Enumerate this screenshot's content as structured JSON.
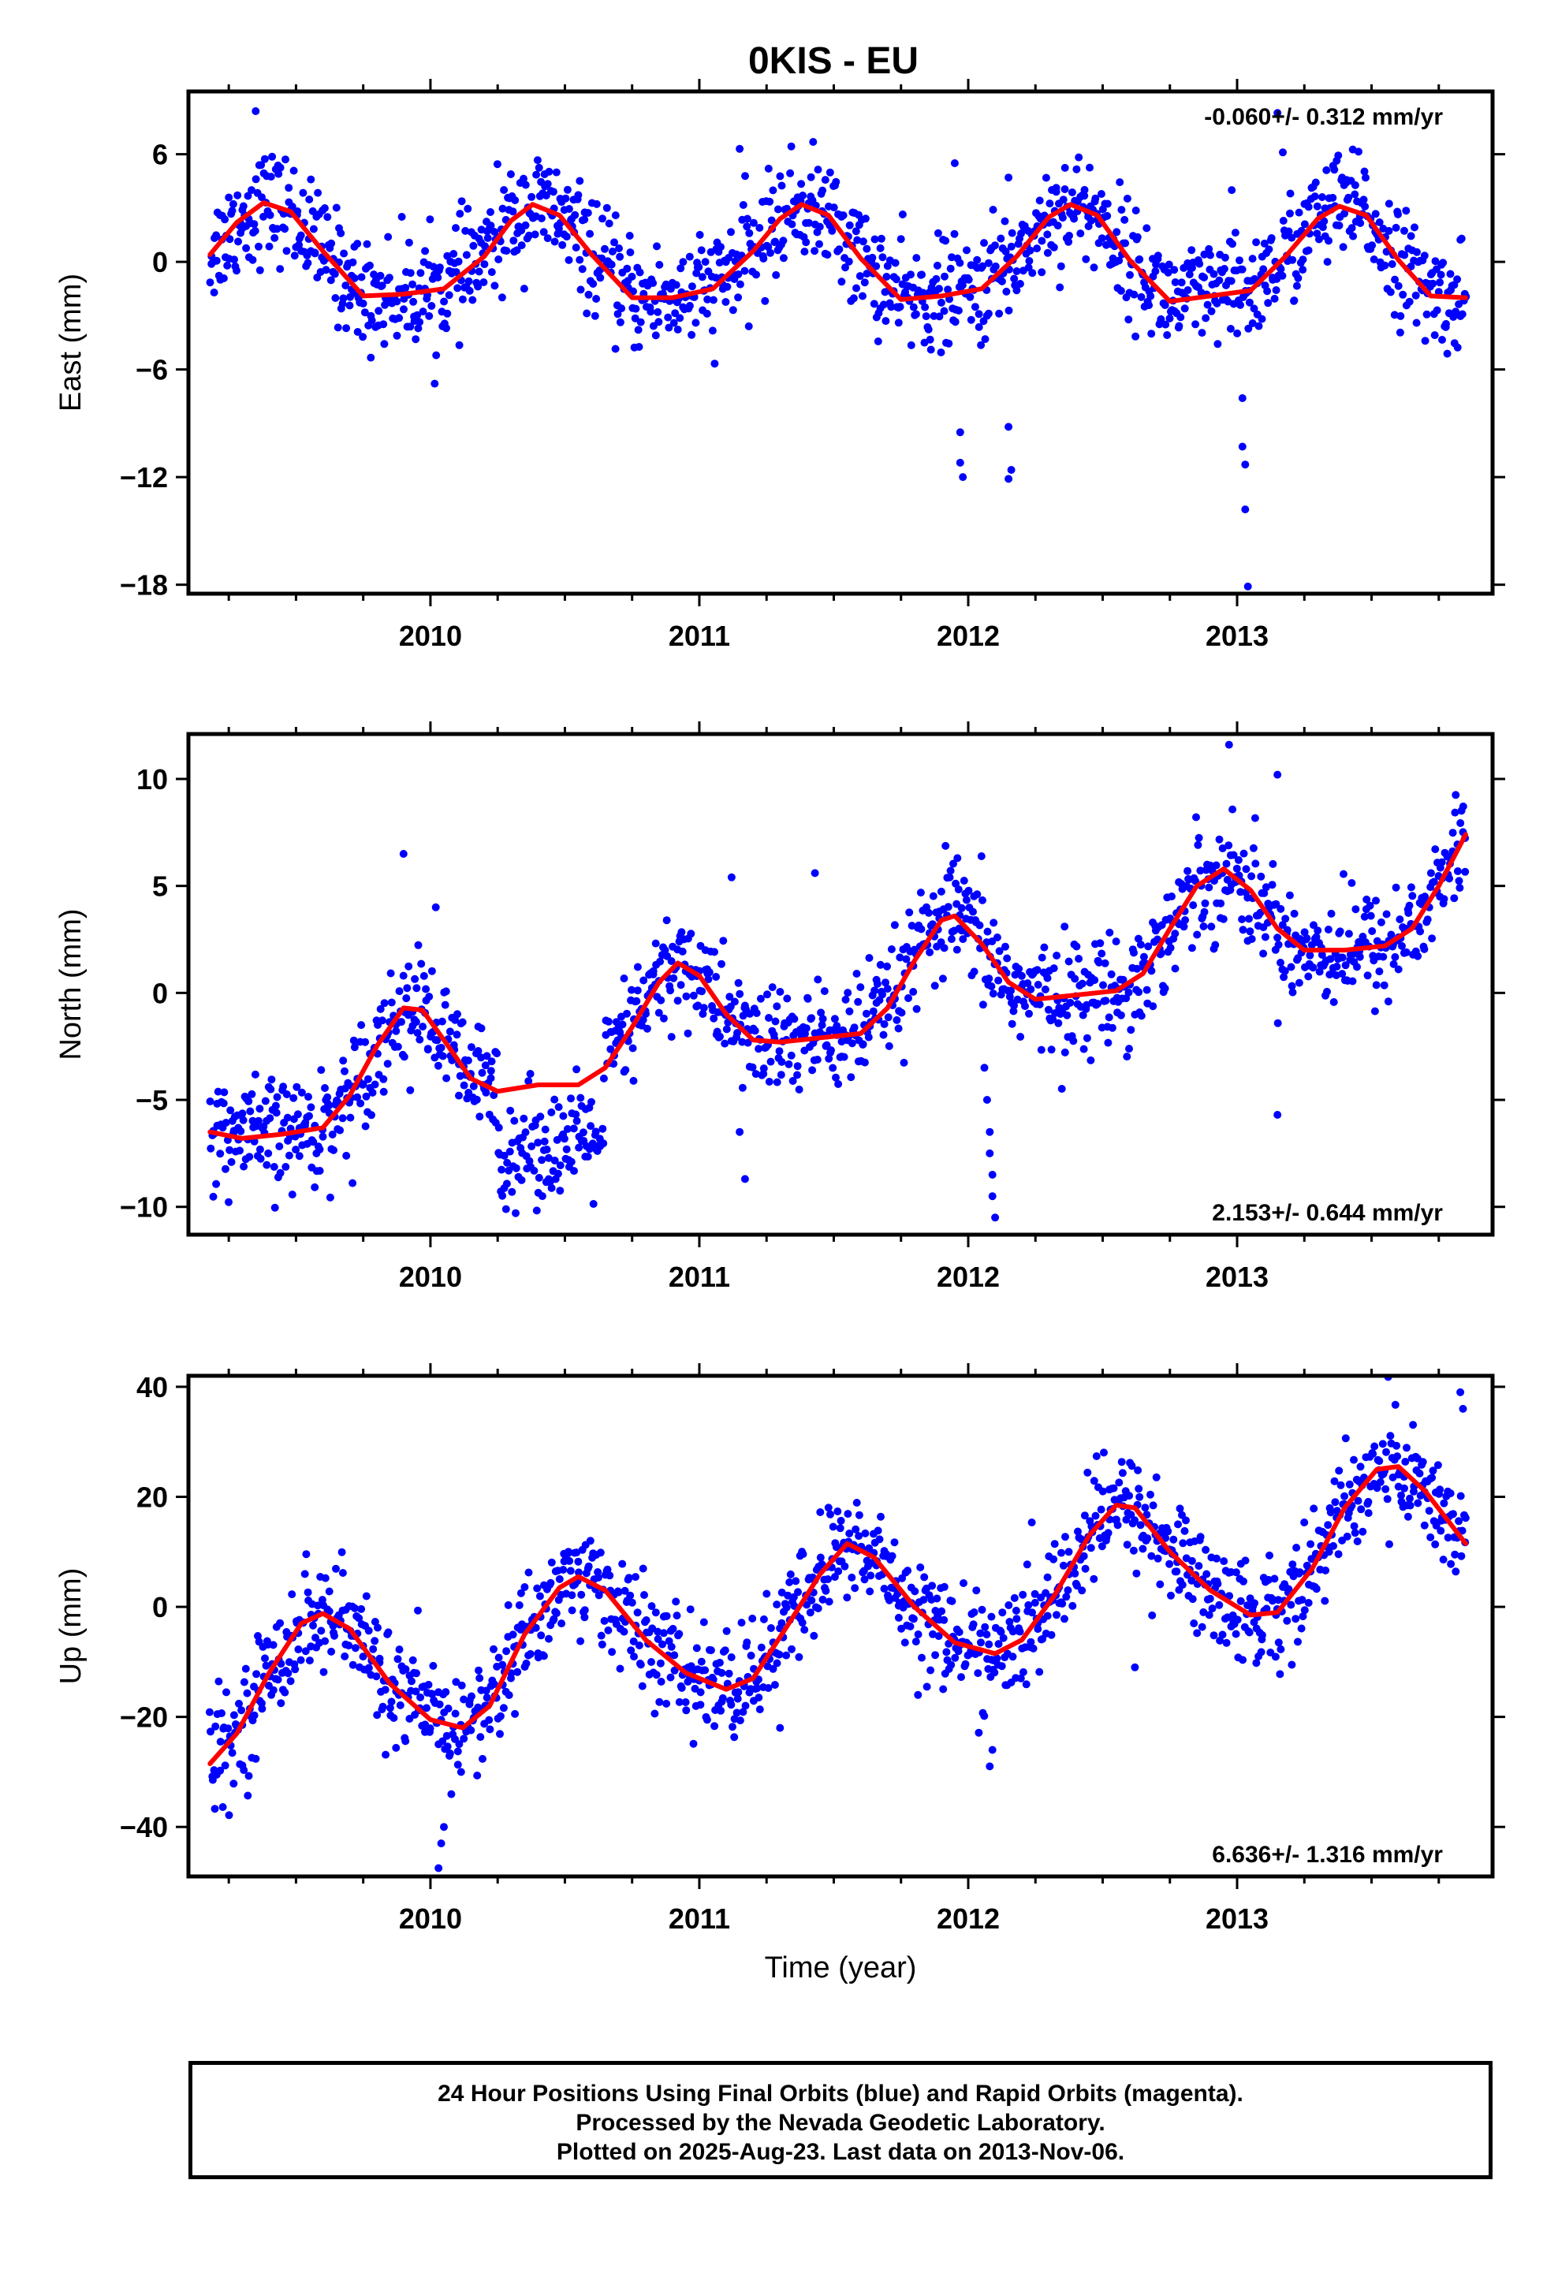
{
  "title": "0KIS - EU",
  "colors": {
    "points": "#0000ff",
    "fit": "#ff0000",
    "frame": "#000000"
  },
  "chart_data": [
    {
      "type": "scatter",
      "ylabel": "East (mm)",
      "xlabel": "",
      "rate": "-0.060+/- 0.312 mm/yr",
      "rate_position": "top-right",
      "xlim": [
        2009.1,
        2013.95
      ],
      "ylim": [
        -18.5,
        9.5
      ],
      "xticks": [
        "2010",
        "2011",
        "2012",
        "2013"
      ],
      "yticks": [
        "6",
        "0",
        "-6",
        "-12",
        "-18"
      ],
      "ytick_values": [
        6,
        0,
        -6,
        -12,
        -18
      ],
      "series": [
        {
          "role": "daily positions",
          "model": {
            "x_start": 2009.18,
            "x_end": 2013.85,
            "n": 1300,
            "annual_amp": 2.7,
            "semiannual_amp": 0.7,
            "phase": 1.2,
            "trend": -0.06,
            "offset": 0.3,
            "noise": 1.5
          },
          "outliers": [
            [
              2009.35,
              8.4
            ],
            [
              2011.97,
              -9.5
            ],
            [
              2011.97,
              -11.2
            ],
            [
              2011.98,
              -12.0
            ],
            [
              2012.15,
              -12.1
            ],
            [
              2012.16,
              -11.6
            ],
            [
              2012.15,
              -9.2
            ],
            [
              2013.02,
              -7.6
            ],
            [
              2013.02,
              -10.3
            ],
            [
              2013.03,
              -11.3
            ],
            [
              2013.03,
              -13.8
            ],
            [
              2013.04,
              -18.1
            ],
            [
              2013.15,
              8.3
            ],
            [
              2013.17,
              6.1
            ],
            [
              2011.15,
              6.3
            ],
            [
              2011.95,
              5.5
            ],
            [
              2012.15,
              4.7
            ],
            [
              2012.98,
              4.0
            ]
          ]
        },
        {
          "role": "model fit",
          "points": [
            [
              2009.18,
              0.4
            ],
            [
              2009.28,
              2.2
            ],
            [
              2009.38,
              3.3
            ],
            [
              2009.48,
              2.8
            ],
            [
              2009.6,
              0.6
            ],
            [
              2009.75,
              -1.9
            ],
            [
              2009.9,
              -1.8
            ],
            [
              2010.05,
              -1.5
            ],
            [
              2010.2,
              0.3
            ],
            [
              2010.3,
              2.3
            ],
            [
              2010.38,
              3.2
            ],
            [
              2010.48,
              2.6
            ],
            [
              2010.6,
              0.4
            ],
            [
              2010.75,
              -2.0
            ],
            [
              2010.9,
              -2.0
            ],
            [
              2011.05,
              -1.5
            ],
            [
              2011.2,
              0.6
            ],
            [
              2011.3,
              2.4
            ],
            [
              2011.38,
              3.2
            ],
            [
              2011.48,
              2.6
            ],
            [
              2011.6,
              0.2
            ],
            [
              2011.75,
              -2.1
            ],
            [
              2011.9,
              -1.9
            ],
            [
              2012.05,
              -1.5
            ],
            [
              2012.18,
              0.3
            ],
            [
              2012.3,
              2.5
            ],
            [
              2012.38,
              3.2
            ],
            [
              2012.48,
              2.6
            ],
            [
              2012.6,
              0.1
            ],
            [
              2012.75,
              -2.2
            ],
            [
              2012.9,
              -1.9
            ],
            [
              2013.05,
              -1.6
            ],
            [
              2013.18,
              0.3
            ],
            [
              2013.3,
              2.4
            ],
            [
              2013.38,
              3.1
            ],
            [
              2013.48,
              2.6
            ],
            [
              2013.6,
              0.1
            ],
            [
              2013.72,
              -1.9
            ],
            [
              2013.85,
              -2.0
            ]
          ]
        }
      ]
    },
    {
      "type": "scatter",
      "ylabel": "North (mm)",
      "xlabel": "",
      "rate": "2.153+/- 0.644 mm/yr",
      "rate_position": "bottom-right",
      "xlim": [
        2009.1,
        2013.95
      ],
      "ylim": [
        -11.3,
        12.1
      ],
      "xticks": [
        "2010",
        "2011",
        "2012",
        "2013"
      ],
      "yticks": [
        "10",
        "5",
        "0",
        "-5",
        "-10"
      ],
      "ytick_values": [
        10,
        5,
        0,
        -5,
        -10
      ],
      "series": [
        {
          "role": "daily positions",
          "model": {
            "use_fit": true,
            "n": 1300,
            "noise": 1.3,
            "gap": [
              2010.25,
              2010.65
            ],
            "gap_shift": -2.8,
            "x_start": 2009.18,
            "x_end": 2013.85
          },
          "outliers": [
            [
              2009.9,
              6.5
            ],
            [
              2010.02,
              4.0
            ],
            [
              2011.12,
              5.4
            ],
            [
              2011.43,
              5.6
            ],
            [
              2011.96,
              6.3
            ],
            [
              2012.06,
              -3.5
            ],
            [
              2012.07,
              -5.0
            ],
            [
              2012.08,
              -6.5
            ],
            [
              2012.08,
              -7.5
            ],
            [
              2012.09,
              -8.5
            ],
            [
              2012.09,
              -9.5
            ],
            [
              2012.1,
              -10.5
            ],
            [
              2012.97,
              11.6
            ],
            [
              2013.15,
              10.2
            ],
            [
              2013.15,
              -5.7
            ],
            [
              2011.15,
              -6.5
            ],
            [
              2011.17,
              -8.7
            ]
          ]
        },
        {
          "role": "model fit",
          "points": [
            [
              2009.18,
              -6.5
            ],
            [
              2009.3,
              -6.8
            ],
            [
              2009.45,
              -6.6
            ],
            [
              2009.6,
              -6.3
            ],
            [
              2009.7,
              -4.8
            ],
            [
              2009.8,
              -2.5
            ],
            [
              2009.9,
              -0.7
            ],
            [
              2009.97,
              -0.8
            ],
            [
              2010.05,
              -2.2
            ],
            [
              2010.15,
              -4.0
            ],
            [
              2010.25,
              -4.6
            ],
            [
              2010.4,
              -4.3
            ],
            [
              2010.55,
              -4.3
            ],
            [
              2010.65,
              -3.5
            ],
            [
              2010.75,
              -1.6
            ],
            [
              2010.85,
              0.5
            ],
            [
              2010.92,
              1.4
            ],
            [
              2011.0,
              0.8
            ],
            [
              2011.1,
              -1.0
            ],
            [
              2011.2,
              -2.2
            ],
            [
              2011.3,
              -2.3
            ],
            [
              2011.45,
              -2.1
            ],
            [
              2011.6,
              -1.9
            ],
            [
              2011.7,
              -0.7
            ],
            [
              2011.8,
              1.5
            ],
            [
              2011.9,
              3.4
            ],
            [
              2011.95,
              3.6
            ],
            [
              2012.05,
              2.3
            ],
            [
              2012.15,
              0.5
            ],
            [
              2012.25,
              -0.3
            ],
            [
              2012.4,
              -0.1
            ],
            [
              2012.55,
              0.1
            ],
            [
              2012.65,
              0.9
            ],
            [
              2012.75,
              3.0
            ],
            [
              2012.85,
              5.0
            ],
            [
              2012.95,
              5.8
            ],
            [
              2013.05,
              4.8
            ],
            [
              2013.15,
              3.0
            ],
            [
              2013.25,
              2.0
            ],
            [
              2013.4,
              2.0
            ],
            [
              2013.55,
              2.2
            ],
            [
              2013.65,
              3.0
            ],
            [
              2013.75,
              5.0
            ],
            [
              2013.85,
              7.4
            ]
          ]
        }
      ]
    },
    {
      "type": "scatter",
      "ylabel": "Up (mm)",
      "xlabel": "Time (year)",
      "rate": "6.636+/- 1.316 mm/yr",
      "rate_position": "bottom-right",
      "xlim": [
        2009.1,
        2013.95
      ],
      "ylim": [
        -49,
        42
      ],
      "xticks": [
        "2010",
        "2011",
        "2012",
        "2013"
      ],
      "yticks": [
        "40",
        "20",
        "0",
        "-20",
        "-40"
      ],
      "ytick_values": [
        40,
        20,
        0,
        -20,
        -40
      ],
      "series": [
        {
          "role": "daily positions",
          "model": {
            "use_fit": true,
            "n": 1300,
            "noise": 5.0,
            "x_start": 2009.18,
            "x_end": 2013.85
          },
          "outliers": [
            [
              2010.03,
              -47.5
            ],
            [
              2010.04,
              -43.0
            ],
            [
              2010.05,
              -40.0
            ],
            [
              2012.08,
              -29.0
            ],
            [
              2012.09,
              -26.0
            ],
            [
              2013.83,
              39.0
            ],
            [
              2013.84,
              36.0
            ],
            [
              2012.62,
              -11.0
            ],
            [
              2011.3,
              -22.0
            ],
            [
              2012.78,
              15.0
            ]
          ]
        },
        {
          "role": "model fit",
          "points": [
            [
              2009.18,
              -28.5
            ],
            [
              2009.28,
              -23.0
            ],
            [
              2009.4,
              -12.0
            ],
            [
              2009.52,
              -3.0
            ],
            [
              2009.6,
              -1.2
            ],
            [
              2009.7,
              -4.0
            ],
            [
              2009.85,
              -14.0
            ],
            [
              2010.0,
              -20.5
            ],
            [
              2010.12,
              -22.0
            ],
            [
              2010.22,
              -18.0
            ],
            [
              2010.35,
              -5.0
            ],
            [
              2010.48,
              3.5
            ],
            [
              2010.55,
              5.5
            ],
            [
              2010.65,
              3.0
            ],
            [
              2010.8,
              -6.0
            ],
            [
              2010.95,
              -12.0
            ],
            [
              2011.1,
              -15.0
            ],
            [
              2011.2,
              -13.0
            ],
            [
              2011.32,
              -4.0
            ],
            [
              2011.45,
              6.0
            ],
            [
              2011.55,
              11.5
            ],
            [
              2011.65,
              9.0
            ],
            [
              2011.8,
              0.0
            ],
            [
              2011.95,
              -6.5
            ],
            [
              2012.1,
              -8.5
            ],
            [
              2012.2,
              -6.0
            ],
            [
              2012.32,
              2.0
            ],
            [
              2012.45,
              13.0
            ],
            [
              2012.55,
              18.5
            ],
            [
              2012.62,
              18.0
            ],
            [
              2012.75,
              10.0
            ],
            [
              2012.9,
              3.0
            ],
            [
              2013.05,
              -1.5
            ],
            [
              2013.15,
              -1.0
            ],
            [
              2013.28,
              7.0
            ],
            [
              2013.4,
              18.0
            ],
            [
              2013.52,
              25.0
            ],
            [
              2013.6,
              25.5
            ],
            [
              2013.7,
              21.0
            ],
            [
              2013.85,
              11.5
            ]
          ]
        }
      ]
    }
  ],
  "caption": {
    "line1": "24 Hour Positions Using Final Orbits (blue) and Rapid Orbits (magenta).",
    "line2": "Processed by the Nevada Geodetic Laboratory.",
    "line3": "Plotted on 2025-Aug-23. Last data on 2013-Nov-06."
  }
}
